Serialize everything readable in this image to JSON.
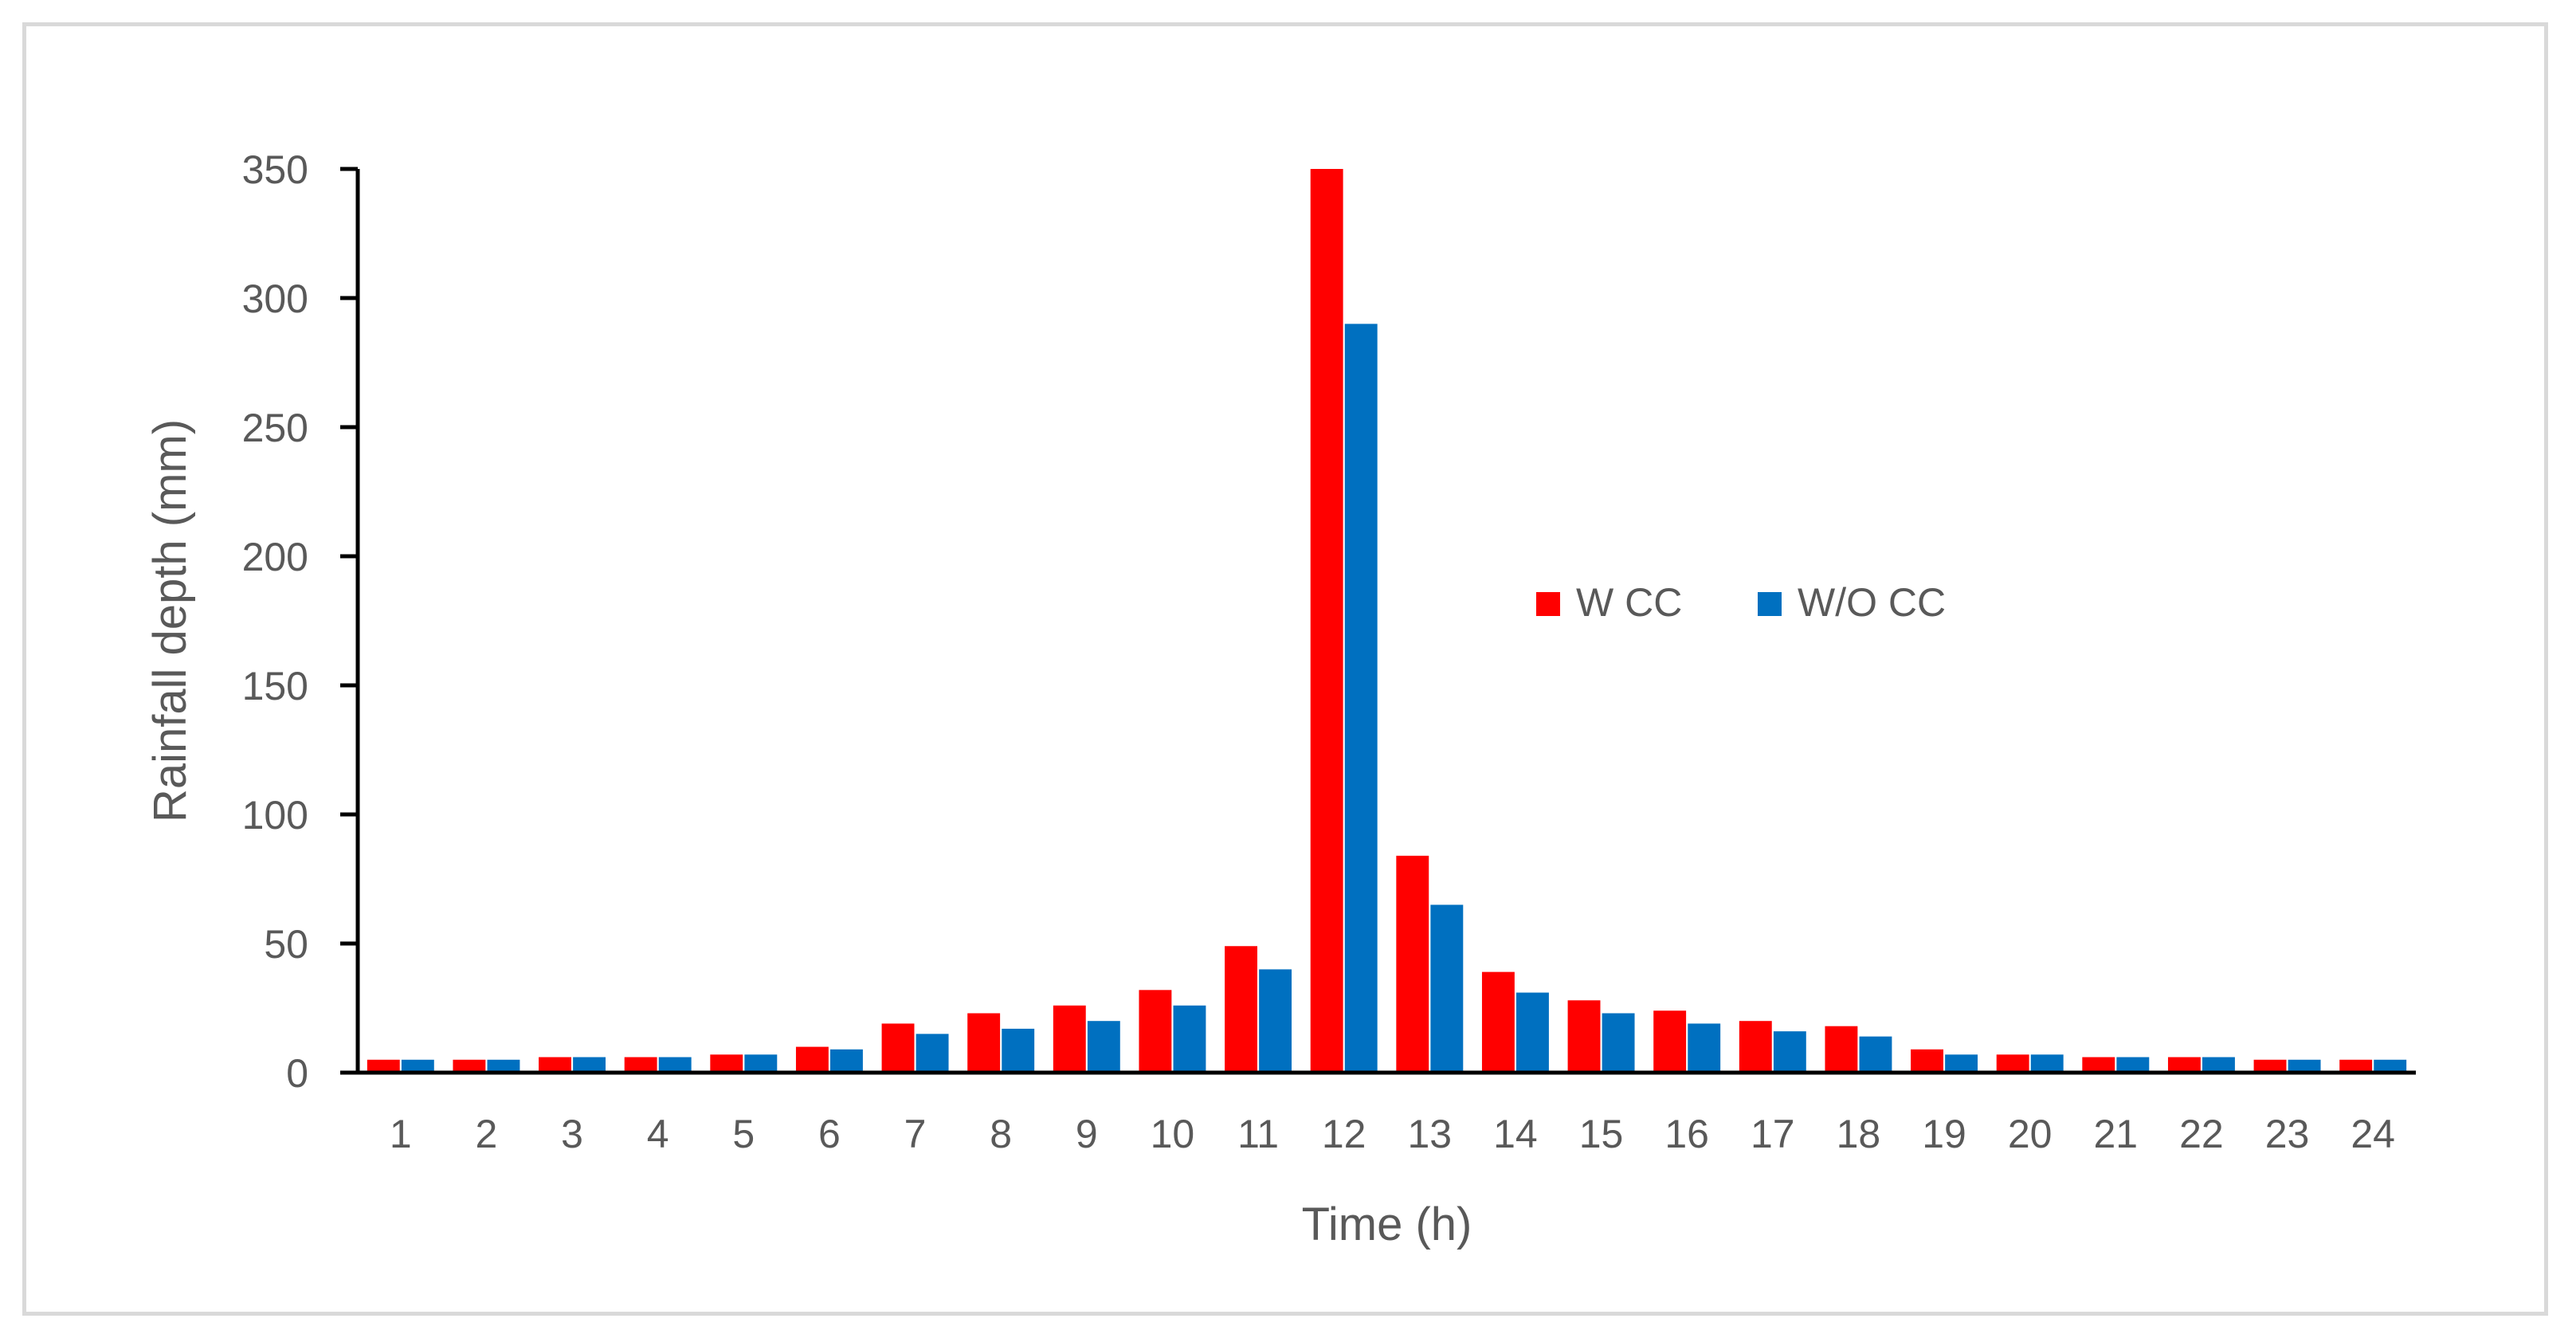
{
  "chart_data": {
    "type": "bar",
    "title": "",
    "xlabel": "Time (h)",
    "ylabel": "Rainfall depth (mm)",
    "ylim": [
      0,
      350
    ],
    "yticks": [
      "0",
      "50",
      "100",
      "150",
      "200",
      "250",
      "300",
      "350"
    ],
    "categories": [
      "1",
      "2",
      "3",
      "4",
      "5",
      "6",
      "7",
      "8",
      "9",
      "10",
      "11",
      "12",
      "13",
      "14",
      "15",
      "16",
      "17",
      "18",
      "19",
      "20",
      "21",
      "22",
      "23",
      "24"
    ],
    "series": [
      {
        "name": "W CC",
        "color": "#ff0000",
        "values": [
          5,
          5,
          6,
          6,
          7,
          10,
          19,
          23,
          26,
          32,
          49,
          350,
          84,
          39,
          28,
          24,
          20,
          18,
          9,
          7,
          6,
          6,
          5,
          5
        ]
      },
      {
        "name": "W/O CC",
        "color": "#0070c0",
        "values": [
          5,
          5,
          6,
          6,
          7,
          9,
          15,
          17,
          20,
          26,
          40,
          290,
          65,
          31,
          23,
          19,
          16,
          14,
          7,
          7,
          6,
          6,
          5,
          5
        ]
      }
    ],
    "grid": false,
    "legend_position": "center-right"
  }
}
